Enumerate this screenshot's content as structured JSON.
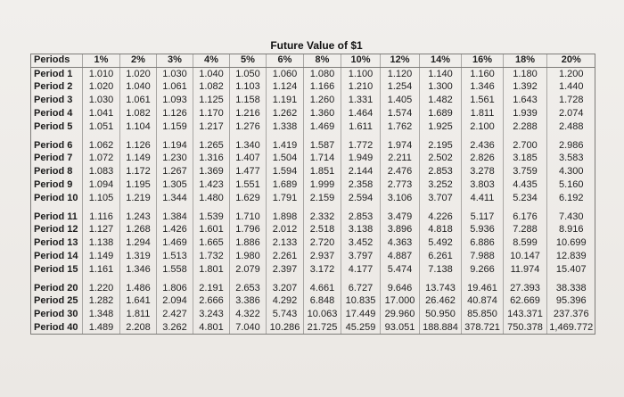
{
  "title": "Future Value of $1",
  "header": {
    "period_label": "Periods",
    "rates": [
      "1%",
      "2%",
      "3%",
      "4%",
      "5%",
      "6%",
      "8%",
      "10%",
      "12%",
      "14%",
      "16%",
      "18%",
      "20%"
    ]
  },
  "groups": [
    {
      "rows": [
        {
          "label": "Period 1",
          "values": [
            "1.010",
            "1.020",
            "1.030",
            "1.040",
            "1.050",
            "1.060",
            "1.080",
            "1.100",
            "1.120",
            "1.140",
            "1.160",
            "1.180",
            "1.200"
          ]
        },
        {
          "label": "Period 2",
          "values": [
            "1.020",
            "1.040",
            "1.061",
            "1.082",
            "1.103",
            "1.124",
            "1.166",
            "1.210",
            "1.254",
            "1.300",
            "1.346",
            "1.392",
            "1.440"
          ]
        },
        {
          "label": "Period 3",
          "values": [
            "1.030",
            "1.061",
            "1.093",
            "1.125",
            "1.158",
            "1.191",
            "1.260",
            "1.331",
            "1.405",
            "1.482",
            "1.561",
            "1.643",
            "1.728"
          ]
        },
        {
          "label": "Period 4",
          "values": [
            "1.041",
            "1.082",
            "1.126",
            "1.170",
            "1.216",
            "1.262",
            "1.360",
            "1.464",
            "1.574",
            "1.689",
            "1.811",
            "1.939",
            "2.074"
          ]
        },
        {
          "label": "Period 5",
          "values": [
            "1.051",
            "1.104",
            "1.159",
            "1.217",
            "1.276",
            "1.338",
            "1.469",
            "1.611",
            "1.762",
            "1.925",
            "2.100",
            "2.288",
            "2.488"
          ]
        }
      ]
    },
    {
      "rows": [
        {
          "label": "Period 6",
          "values": [
            "1.062",
            "1.126",
            "1.194",
            "1.265",
            "1.340",
            "1.419",
            "1.587",
            "1.772",
            "1.974",
            "2.195",
            "2.436",
            "2.700",
            "2.986"
          ]
        },
        {
          "label": "Period 7",
          "values": [
            "1.072",
            "1.149",
            "1.230",
            "1.316",
            "1.407",
            "1.504",
            "1.714",
            "1.949",
            "2.211",
            "2.502",
            "2.826",
            "3.185",
            "3.583"
          ]
        },
        {
          "label": "Period 8",
          "values": [
            "1.083",
            "1.172",
            "1.267",
            "1.369",
            "1.477",
            "1.594",
            "1.851",
            "2.144",
            "2.476",
            "2.853",
            "3.278",
            "3.759",
            "4.300"
          ]
        },
        {
          "label": "Period 9",
          "values": [
            "1.094",
            "1.195",
            "1.305",
            "1.423",
            "1.551",
            "1.689",
            "1.999",
            "2.358",
            "2.773",
            "3.252",
            "3.803",
            "4.435",
            "5.160"
          ]
        },
        {
          "label": "Period 10",
          "values": [
            "1.105",
            "1.219",
            "1.344",
            "1.480",
            "1.629",
            "1.791",
            "2.159",
            "2.594",
            "3.106",
            "3.707",
            "4.411",
            "5.234",
            "6.192"
          ]
        }
      ]
    },
    {
      "rows": [
        {
          "label": "Period 11",
          "values": [
            "1.116",
            "1.243",
            "1.384",
            "1.539",
            "1.710",
            "1.898",
            "2.332",
            "2.853",
            "3.479",
            "4.226",
            "5.117",
            "6.176",
            "7.430"
          ]
        },
        {
          "label": "Period 12",
          "values": [
            "1.127",
            "1.268",
            "1.426",
            "1.601",
            "1.796",
            "2.012",
            "2.518",
            "3.138",
            "3.896",
            "4.818",
            "5.936",
            "7.288",
            "8.916"
          ]
        },
        {
          "label": "Period 13",
          "values": [
            "1.138",
            "1.294",
            "1.469",
            "1.665",
            "1.886",
            "2.133",
            "2.720",
            "3.452",
            "4.363",
            "5.492",
            "6.886",
            "8.599",
            "10.699"
          ]
        },
        {
          "label": "Period 14",
          "values": [
            "1.149",
            "1.319",
            "1.513",
            "1.732",
            "1.980",
            "2.261",
            "2.937",
            "3.797",
            "4.887",
            "6.261",
            "7.988",
            "10.147",
            "12.839"
          ]
        },
        {
          "label": "Period 15",
          "values": [
            "1.161",
            "1.346",
            "1.558",
            "1.801",
            "2.079",
            "2.397",
            "3.172",
            "4.177",
            "5.474",
            "7.138",
            "9.266",
            "11.974",
            "15.407"
          ]
        }
      ]
    },
    {
      "rows": [
        {
          "label": "Period 20",
          "values": [
            "1.220",
            "1.486",
            "1.806",
            "2.191",
            "2.653",
            "3.207",
            "4.661",
            "6.727",
            "9.646",
            "13.743",
            "19.461",
            "27.393",
            "38.338"
          ]
        },
        {
          "label": "Period 25",
          "values": [
            "1.282",
            "1.641",
            "2.094",
            "2.666",
            "3.386",
            "4.292",
            "6.848",
            "10.835",
            "17.000",
            "26.462",
            "40.874",
            "62.669",
            "95.396"
          ]
        },
        {
          "label": "Period 30",
          "values": [
            "1.348",
            "1.811",
            "2.427",
            "3.243",
            "4.322",
            "5.743",
            "10.063",
            "17.449",
            "29.960",
            "50.950",
            "85.850",
            "143.371",
            "237.376"
          ]
        },
        {
          "label": "Period 40",
          "values": [
            "1.489",
            "2.208",
            "3.262",
            "4.801",
            "7.040",
            "10.286",
            "21.725",
            "45.259",
            "93.051",
            "188.884",
            "378.721",
            "750.378",
            "1,469.772"
          ]
        }
      ]
    }
  ]
}
